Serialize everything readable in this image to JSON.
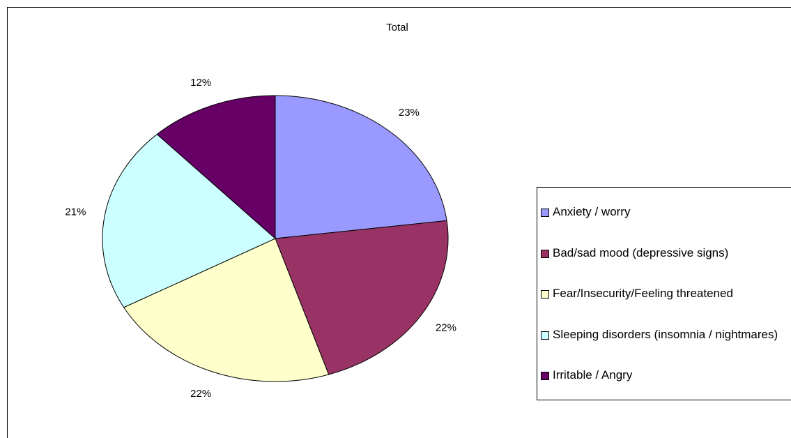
{
  "chart_data": {
    "type": "pie",
    "title": "Total",
    "categories": [
      "Anxiety / worry",
      "Bad/sad mood (depressive signs)",
      "Fear/Insecurity/Feeling threatened",
      "Sleeping disorders (insomnia / nightmares)",
      "Irritable / Angry"
    ],
    "values": [
      23,
      22,
      22,
      21,
      12
    ],
    "value_labels": [
      "23%",
      "22%",
      "22%",
      "21%",
      "12%"
    ],
    "colors": [
      "#9999ff",
      "#993366",
      "#ffffcc",
      "#ccffff",
      "#660066"
    ],
    "legend": "right"
  }
}
